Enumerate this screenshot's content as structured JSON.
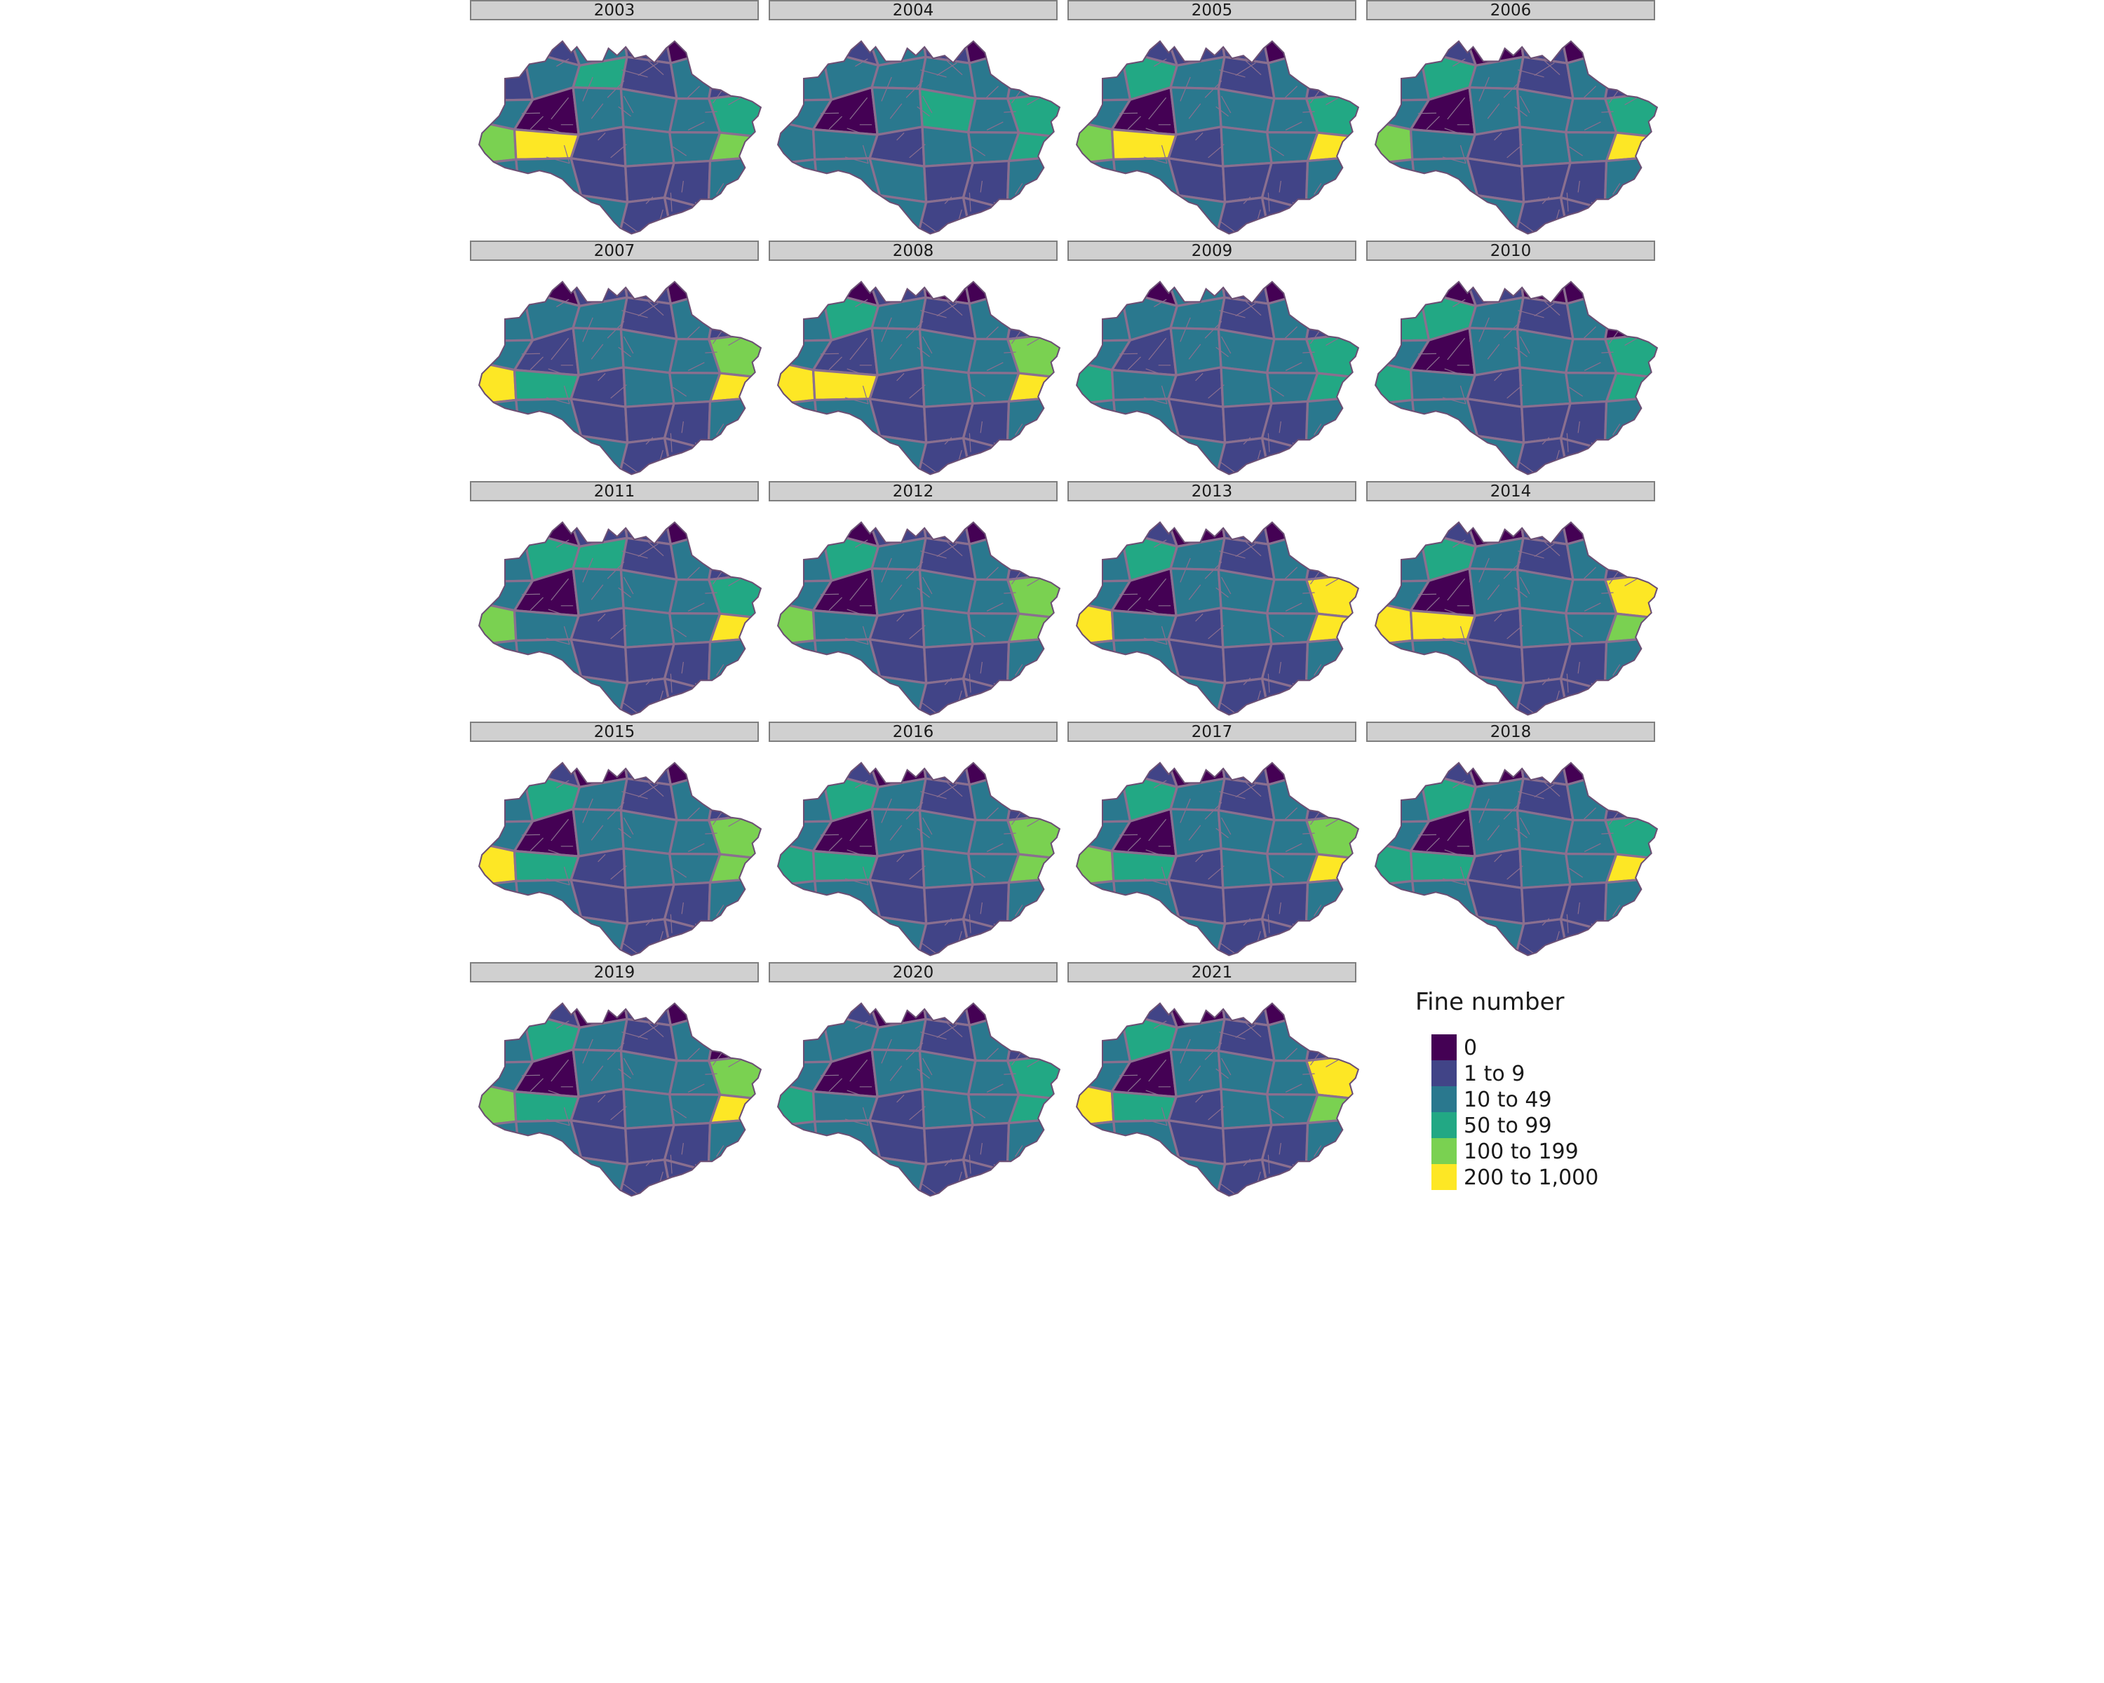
{
  "chart_data": {
    "type": "choropleth-facet",
    "panels": [
      {
        "label": "2003",
        "classes": [
          0,
          1,
          2,
          1,
          0,
          1,
          1,
          2,
          3,
          1,
          2,
          1,
          2,
          0,
          2,
          2,
          2,
          3,
          4,
          5,
          1,
          2,
          2,
          4,
          2,
          2,
          1,
          1,
          1,
          2,
          2,
          1,
          2,
          1,
          1,
          1
        ]
      },
      {
        "label": "2004",
        "classes": [
          0,
          1,
          2,
          1,
          0,
          2,
          2,
          2,
          2,
          2,
          2,
          2,
          2,
          0,
          2,
          3,
          2,
          3,
          2,
          2,
          1,
          2,
          2,
          3,
          2,
          2,
          2,
          1,
          1,
          2,
          2,
          2,
          2,
          1,
          1,
          2
        ]
      },
      {
        "label": "2005",
        "classes": [
          0,
          1,
          1,
          1,
          0,
          2,
          2,
          3,
          2,
          1,
          2,
          1,
          2,
          0,
          2,
          2,
          2,
          3,
          4,
          5,
          1,
          2,
          2,
          5,
          2,
          2,
          1,
          1,
          1,
          2,
          2,
          2,
          2,
          1,
          1,
          2
        ]
      },
      {
        "label": "2006",
        "classes": [
          0,
          1,
          0,
          1,
          0,
          2,
          2,
          3,
          2,
          1,
          2,
          1,
          2,
          0,
          2,
          2,
          2,
          3,
          4,
          2,
          1,
          2,
          2,
          5,
          2,
          2,
          1,
          1,
          1,
          2,
          2,
          2,
          2,
          1,
          1,
          2
        ]
      },
      {
        "label": "2007",
        "classes": [
          1,
          0,
          1,
          1,
          0,
          2,
          2,
          2,
          2,
          1,
          2,
          1,
          2,
          1,
          2,
          2,
          2,
          4,
          5,
          3,
          1,
          2,
          2,
          5,
          2,
          2,
          1,
          1,
          1,
          2,
          2,
          1,
          2,
          1,
          1,
          1
        ]
      },
      {
        "label": "2008",
        "classes": [
          1,
          0,
          1,
          0,
          0,
          2,
          2,
          3,
          2,
          1,
          2,
          1,
          2,
          1,
          2,
          2,
          2,
          4,
          5,
          5,
          1,
          2,
          2,
          5,
          2,
          2,
          1,
          1,
          1,
          2,
          2,
          2,
          2,
          1,
          1,
          1
        ]
      },
      {
        "label": "2009",
        "classes": [
          1,
          0,
          2,
          1,
          0,
          2,
          2,
          2,
          2,
          1,
          2,
          1,
          2,
          1,
          2,
          2,
          2,
          3,
          3,
          2,
          1,
          2,
          2,
          3,
          2,
          2,
          1,
          1,
          1,
          2,
          2,
          1,
          2,
          1,
          1,
          1
        ]
      },
      {
        "label": "2010",
        "classes": [
          1,
          0,
          1,
          0,
          0,
          2,
          3,
          3,
          2,
          1,
          2,
          0,
          2,
          0,
          2,
          2,
          2,
          3,
          3,
          2,
          1,
          2,
          2,
          3,
          2,
          2,
          1,
          1,
          1,
          2,
          2,
          1,
          2,
          1,
          1,
          1
        ]
      },
      {
        "label": "2011",
        "classes": [
          1,
          0,
          1,
          1,
          0,
          2,
          2,
          3,
          3,
          1,
          2,
          1,
          2,
          0,
          2,
          2,
          2,
          3,
          4,
          2,
          1,
          2,
          2,
          5,
          2,
          2,
          1,
          1,
          1,
          2,
          2,
          1,
          2,
          1,
          1,
          1
        ]
      },
      {
        "label": "2012",
        "classes": [
          0,
          0,
          1,
          1,
          0,
          3,
          2,
          3,
          2,
          1,
          2,
          1,
          2,
          0,
          2,
          2,
          2,
          4,
          4,
          2,
          1,
          2,
          2,
          4,
          2,
          2,
          1,
          1,
          1,
          2,
          2,
          1,
          2,
          1,
          1,
          1
        ]
      },
      {
        "label": "2013",
        "classes": [
          0,
          1,
          0,
          1,
          0,
          2,
          2,
          3,
          2,
          1,
          2,
          1,
          2,
          0,
          2,
          2,
          2,
          5,
          5,
          2,
          1,
          2,
          2,
          5,
          2,
          2,
          1,
          1,
          1,
          2,
          2,
          1,
          2,
          1,
          1,
          1
        ]
      },
      {
        "label": "2014",
        "classes": [
          0,
          1,
          0,
          1,
          0,
          3,
          2,
          3,
          2,
          1,
          2,
          1,
          2,
          0,
          2,
          2,
          2,
          5,
          5,
          5,
          1,
          2,
          2,
          4,
          2,
          2,
          1,
          1,
          1,
          2,
          2,
          1,
          2,
          1,
          1,
          1
        ]
      },
      {
        "label": "2015",
        "classes": [
          0,
          1,
          0,
          1,
          0,
          2,
          2,
          3,
          2,
          1,
          2,
          1,
          2,
          0,
          2,
          2,
          2,
          4,
          5,
          3,
          1,
          2,
          2,
          4,
          2,
          2,
          1,
          1,
          1,
          2,
          2,
          1,
          2,
          1,
          1,
          1
        ]
      },
      {
        "label": "2016",
        "classes": [
          0,
          1,
          0,
          1,
          0,
          3,
          2,
          3,
          2,
          1,
          2,
          1,
          2,
          0,
          2,
          2,
          2,
          4,
          3,
          3,
          1,
          2,
          2,
          4,
          2,
          2,
          1,
          1,
          1,
          2,
          2,
          1,
          2,
          1,
          1,
          1
        ]
      },
      {
        "label": "2017",
        "classes": [
          0,
          1,
          0,
          1,
          0,
          3,
          2,
          3,
          2,
          1,
          2,
          1,
          2,
          0,
          2,
          2,
          2,
          4,
          4,
          3,
          1,
          2,
          2,
          5,
          2,
          2,
          1,
          1,
          1,
          2,
          2,
          1,
          2,
          1,
          1,
          1
        ]
      },
      {
        "label": "2018",
        "classes": [
          0,
          1,
          0,
          1,
          0,
          4,
          2,
          3,
          2,
          1,
          2,
          1,
          2,
          0,
          2,
          2,
          2,
          3,
          3,
          3,
          1,
          2,
          2,
          5,
          2,
          2,
          1,
          1,
          1,
          2,
          2,
          1,
          2,
          1,
          1,
          1
        ]
      },
      {
        "label": "2019",
        "classes": [
          0,
          1,
          0,
          1,
          0,
          3,
          2,
          3,
          2,
          1,
          2,
          0,
          2,
          0,
          2,
          2,
          2,
          4,
          4,
          3,
          1,
          2,
          2,
          5,
          2,
          2,
          1,
          1,
          1,
          2,
          2,
          1,
          2,
          1,
          1,
          1
        ]
      },
      {
        "label": "2020",
        "classes": [
          0,
          1,
          0,
          1,
          0,
          2,
          2,
          2,
          2,
          1,
          2,
          1,
          2,
          0,
          2,
          2,
          2,
          3,
          3,
          2,
          1,
          2,
          2,
          3,
          2,
          2,
          1,
          1,
          1,
          2,
          2,
          1,
          2,
          1,
          1,
          1
        ]
      },
      {
        "label": "2021",
        "classes": [
          0,
          1,
          0,
          1,
          0,
          2,
          2,
          3,
          2,
          1,
          2,
          1,
          2,
          0,
          2,
          2,
          2,
          5,
          5,
          3,
          1,
          2,
          2,
          4,
          2,
          2,
          1,
          1,
          1,
          2,
          2,
          1,
          2,
          1,
          1,
          1
        ]
      }
    ],
    "legend": {
      "title": "Fine number",
      "position": "right",
      "items": [
        {
          "label": "0",
          "color": "#440154"
        },
        {
          "label": "1 to 9",
          "color": "#414487"
        },
        {
          "label": "10 to 49",
          "color": "#2a788e"
        },
        {
          "label": "50 to 99",
          "color": "#22a884"
        },
        {
          "label": "100 to 199",
          "color": "#7ad151"
        },
        {
          "label": "200 to 1,000",
          "color": "#fde725"
        }
      ]
    },
    "strip_color": "#d0d0d0",
    "border_color": "#8a6f8f"
  }
}
